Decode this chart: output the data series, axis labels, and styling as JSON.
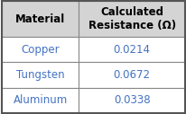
{
  "title_col1": "Material",
  "title_col2": "Calculated\nResistance (Ω)",
  "rows": [
    [
      "Copper",
      "0.0214"
    ],
    [
      "Tungsten",
      "0.0672"
    ],
    [
      "Aluminum",
      "0.0338"
    ]
  ],
  "header_bg": "#d4d4d4",
  "cell_bg": "#ffffff",
  "border_color": "#888888",
  "outer_border_color": "#555555",
  "header_text_color": "#000000",
  "cell_text_color": "#4472c4",
  "header_fontsize": 8.5,
  "cell_fontsize": 8.5,
  "fig_bg": "#ffffff",
  "col_split": 0.42
}
